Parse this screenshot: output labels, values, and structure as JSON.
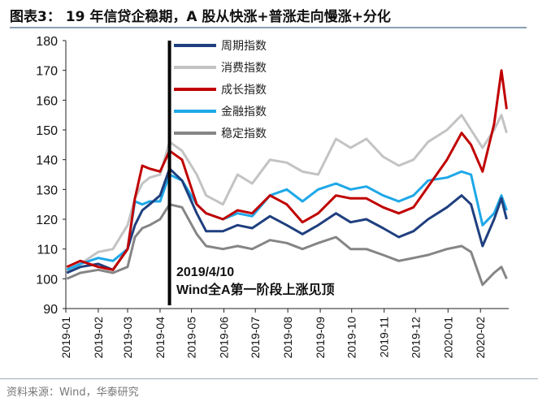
{
  "title": "图表3：  19 年信贷企稳期，A 股从快涨+普涨走向慢涨+分化",
  "source": "资料来源：Wind，华泰研究",
  "chart_data": {
    "type": "line",
    "title": "图表3：  19 年信贷企稳期，A 股从快涨+普涨走向慢涨+分化",
    "xlabel": "",
    "ylabel": "",
    "ylim": [
      90,
      180
    ],
    "yticks": [
      "90",
      "100",
      "110",
      "120",
      "130",
      "140",
      "150",
      "160",
      "170",
      "180"
    ],
    "xlim": [
      "2019-01-01",
      "2020-02-28"
    ],
    "xticks": [
      "2019-01",
      "2019-02",
      "2019-03",
      "2019-04",
      "2019-05",
      "2019-06",
      "2019-07",
      "2019-08",
      "2019-09",
      "2019-10",
      "2019-11",
      "2019-12",
      "2020-01",
      "2020-02"
    ],
    "grid": false,
    "legend_position": "top-center",
    "x": [
      "2019-01-02",
      "2019-01-15",
      "2019-02-01",
      "2019-02-15",
      "2019-03-01",
      "2019-03-08",
      "2019-03-15",
      "2019-03-22",
      "2019-04-01",
      "2019-04-10",
      "2019-04-22",
      "2019-05-06",
      "2019-05-15",
      "2019-05-31",
      "2019-06-14",
      "2019-06-28",
      "2019-07-15",
      "2019-07-31",
      "2019-08-15",
      "2019-08-30",
      "2019-09-16",
      "2019-09-30",
      "2019-10-15",
      "2019-10-31",
      "2019-11-15",
      "2019-11-29",
      "2019-12-13",
      "2019-12-31",
      "2020-01-14",
      "2020-01-23",
      "2020-02-03",
      "2020-02-14",
      "2020-02-21",
      "2020-02-26"
    ],
    "series": [
      {
        "name": "周期指数",
        "color": "#1f3f7f",
        "values": [
          102,
          104,
          105,
          103,
          110,
          118,
          123,
          125,
          128,
          137,
          133,
          122,
          116,
          116,
          118,
          117,
          121,
          118,
          115,
          118,
          122,
          119,
          120,
          117,
          114,
          116,
          120,
          124,
          128,
          125,
          111,
          120,
          127,
          120
        ]
      },
      {
        "name": "消费指数",
        "color": "#c3c3c3",
        "values": [
          102,
          105,
          109,
          110,
          118,
          127,
          132,
          134,
          135,
          146,
          143,
          135,
          128,
          125,
          135,
          132,
          140,
          139,
          136,
          135,
          147,
          144,
          147,
          141,
          138,
          140,
          146,
          150,
          155,
          150,
          144,
          150,
          155,
          149
        ]
      },
      {
        "name": "成长指数",
        "color": "#c00000",
        "values": [
          104,
          106,
          104,
          103,
          110,
          127,
          138,
          137,
          136,
          143,
          140,
          125,
          122,
          120,
          123,
          122,
          128,
          125,
          119,
          122,
          128,
          127,
          127,
          124,
          122,
          124,
          131,
          140,
          149,
          145,
          136,
          152,
          170,
          157
        ]
      },
      {
        "name": "金融指数",
        "color": "#1ea8e8",
        "values": [
          103,
          105,
          107,
          106,
          110,
          126,
          125,
          126,
          126,
          135,
          133,
          125,
          122,
          120,
          122,
          121,
          128,
          130,
          126,
          130,
          132,
          130,
          131,
          128,
          126,
          128,
          133,
          134,
          136,
          135,
          118,
          122,
          128,
          123
        ]
      },
      {
        "name": "稳定指数",
        "color": "#858585",
        "values": [
          100,
          102,
          103,
          102,
          104,
          114,
          117,
          118,
          120,
          125,
          124,
          115,
          111,
          110,
          111,
          110,
          113,
          112,
          110,
          112,
          114,
          110,
          110,
          108,
          106,
          107,
          108,
          110,
          111,
          109,
          98,
          102,
          104,
          100
        ]
      }
    ],
    "annotation": {
      "date": "2019-04-10",
      "line1": "2019/4/10",
      "line2": "Wind全A第一阶段上涨见顶"
    }
  }
}
